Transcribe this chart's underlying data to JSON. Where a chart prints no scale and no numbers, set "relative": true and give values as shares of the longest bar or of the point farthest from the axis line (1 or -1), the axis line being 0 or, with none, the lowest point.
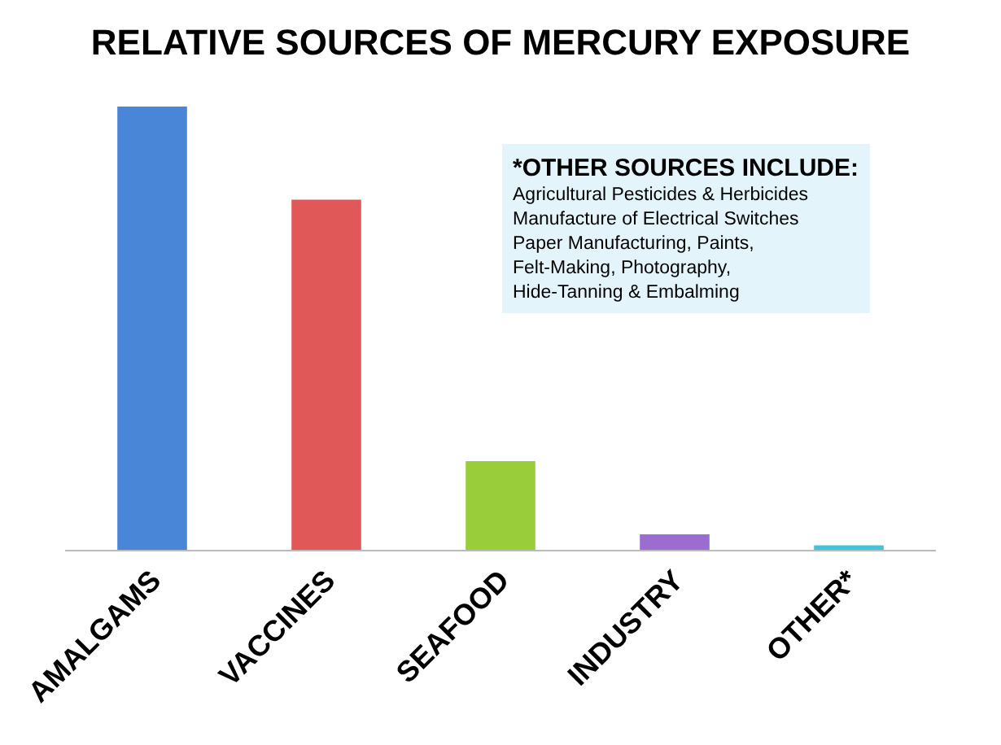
{
  "chart_data": {
    "type": "bar",
    "title": "RELATIVE SOURCES OF MERCURY EXPOSURE",
    "relative": true,
    "categories": [
      "AMALGAMS",
      "VACCINES",
      "SEAFOOD",
      "INDUSTRY",
      "OTHER*"
    ],
    "values": [
      1,
      0.79,
      0.2,
      0.035,
      0.01
    ],
    "colors": [
      "#4a86d8",
      "#e05858",
      "#9acd3a",
      "#9b6dd0",
      "#3cc4e0"
    ],
    "annotations": [
      "*OTHER SOURCES INCLUDE:",
      "Agricultural Pesticides & Herbicides\nManufacture of Electrical Switches\nPaper Manufacturing, Paints,\nFelt-Making, Photography,\nHide-Tanning & Embalming"
    ],
    "legend": false
  }
}
